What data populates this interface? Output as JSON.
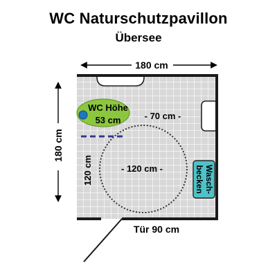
{
  "header": {
    "title": "WC Naturschutzpavillon",
    "subtitle": "Übersee"
  },
  "plan": {
    "width_label": "180 cm",
    "height_label": "180 cm",
    "wc_height_line1": "WC Höhe",
    "wc_height_line2": "53 cm",
    "distance_label": "- 70 cm -",
    "turning_circle_label": "- 120 cm -",
    "clearance_label": "120 cm",
    "sink_label_line1": "Wasch-",
    "sink_label_line2": "becken",
    "door_label": "Tür 90 cm"
  },
  "colors": {
    "floor": "#d7d7d7",
    "wall": "#1a1a1a",
    "wc": "#8cc63f",
    "wc_marker": "#1d78c1",
    "sink": "#4fc2c8",
    "dash": "#2e3a8f"
  }
}
